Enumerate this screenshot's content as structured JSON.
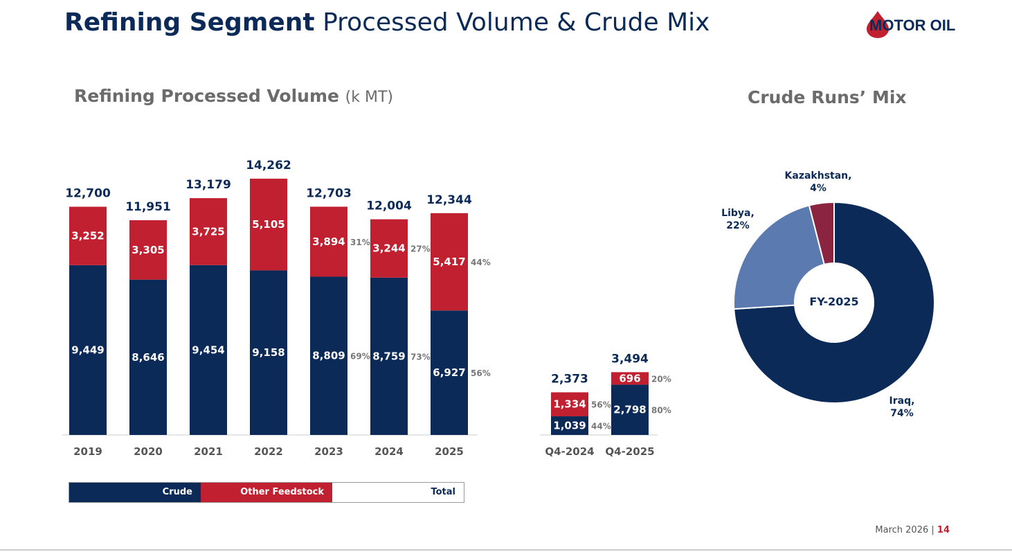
{
  "header": {
    "title_bold": "Refining Segment",
    "title_light": "Processed Volume & Crude Mix",
    "logo_text": "MOTOR OIL"
  },
  "colors": {
    "crude": "#0b2a57",
    "other": "#c0202f",
    "libya": "#5b7bb0",
    "kazakhstan": "#8b2440",
    "iraq": "#0b2a57"
  },
  "chart_data": [
    {
      "type": "bar",
      "stacked": true,
      "title": "Refining Processed Volume",
      "unit": "(k MT)",
      "categories": [
        "2019",
        "2020",
        "2021",
        "2022",
        "2023",
        "2024",
        "2025",
        "Q4-2024",
        "Q4-2025"
      ],
      "series": [
        {
          "name": "Crude",
          "values": [
            9449,
            8646,
            9454,
            9158,
            8809,
            8759,
            6927,
            1039,
            2798
          ],
          "labels": [
            "9,449",
            "8,646",
            "9,454",
            "9,158",
            "8,809",
            "8,759",
            "6,927",
            "1,039",
            "2,798"
          ],
          "shares": [
            "",
            "",
            "",
            "",
            "69%",
            "73%",
            "56%",
            "44%",
            "80%"
          ]
        },
        {
          "name": "Other Feedstock",
          "values": [
            3252,
            3305,
            3725,
            5105,
            3894,
            3244,
            5417,
            1334,
            696
          ],
          "labels": [
            "3,252",
            "3,305",
            "3,725",
            "5,105",
            "3,894",
            "3,244",
            "5,417",
            "1,334",
            "696"
          ],
          "shares": [
            "",
            "",
            "",
            "",
            "31%",
            "27%",
            "44%",
            "56%",
            "20%"
          ]
        }
      ],
      "totals": {
        "name": "Total",
        "values": [
          12700,
          11951,
          13179,
          14262,
          12703,
          12004,
          12344,
          2373,
          3494
        ],
        "labels": [
          "12,700",
          "11,951",
          "13,179",
          "14,262",
          "12,703",
          "12,004",
          "12,344",
          "2,373",
          "3,494"
        ]
      },
      "legend": [
        "Crude",
        "Other Feedstock",
        "Total"
      ],
      "legend_position": "bottom"
    },
    {
      "type": "pie",
      "donut": true,
      "title": "Crude Runs’ Mix",
      "center_label": "FY-2025",
      "slices": [
        {
          "name": "Iraq",
          "value": 74,
          "label": "74%"
        },
        {
          "name": "Libya",
          "value": 22,
          "label": "22%"
        },
        {
          "name": "Kazakhstan",
          "value": 4,
          "label": "4%"
        }
      ]
    }
  ],
  "footer": {
    "date": "March 2026",
    "page": "14"
  }
}
